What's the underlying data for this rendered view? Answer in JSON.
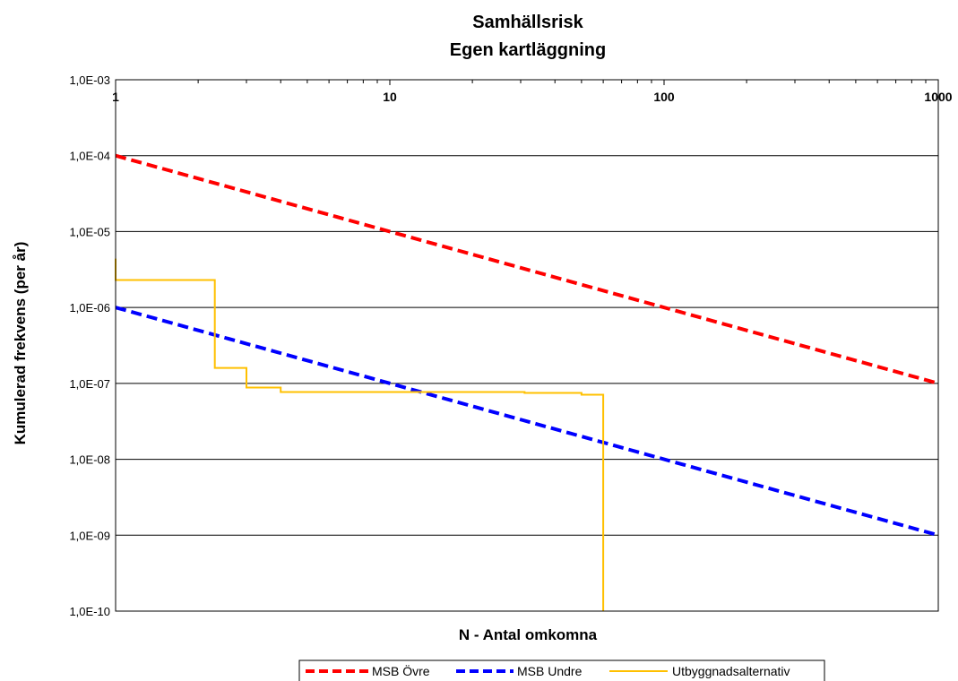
{
  "chart_data": {
    "type": "line",
    "title": [
      "Samhällsrisk",
      "Egen kartläggning"
    ],
    "xlabel": "N - Antal omkomna",
    "ylabel": "Kumulerad frekvens (per år)",
    "x_scale": "log",
    "y_scale": "log",
    "xlim": [
      1,
      1000
    ],
    "ylim": [
      1e-10,
      0.001
    ],
    "x_ticks": [
      1,
      10,
      100,
      1000
    ],
    "x_tick_labels": [
      "1",
      "10",
      "100",
      "1000"
    ],
    "y_ticks": [
      0.001,
      0.0001,
      1e-05,
      1e-06,
      1e-07,
      1e-08,
      1e-09,
      1e-10
    ],
    "y_tick_labels": [
      "1,0E-03",
      "1,0E-04",
      "1,0E-05",
      "1,0E-06",
      "1,0E-07",
      "1,0E-08",
      "1,0E-09",
      "1,0E-10"
    ],
    "grid": "horizontal major",
    "legend_position": "bottom",
    "series": [
      {
        "name": "MSB Övre",
        "color": "#ff0000",
        "style": "dashed",
        "x": [
          1,
          1000
        ],
        "y": [
          0.0001,
          1e-07
        ]
      },
      {
        "name": "MSB Undre",
        "color": "#0000ff",
        "style": "dashed",
        "x": [
          1,
          1000
        ],
        "y": [
          1e-06,
          1e-09
        ]
      },
      {
        "name": "Utbyggnadsalternativ",
        "color": "#ffc000",
        "style": "solid",
        "x": [
          1,
          1,
          2.3,
          2.3,
          3.0,
          3.0,
          4.0,
          4.0,
          31,
          31,
          50,
          50,
          60,
          60
        ],
        "y": [
          4.4e-06,
          2.3e-06,
          2.3e-06,
          1.6e-07,
          1.6e-07,
          8.8e-08,
          8.8e-08,
          7.7e-08,
          7.7e-08,
          7.5e-08,
          7.5e-08,
          7.1e-08,
          7.1e-08,
          1e-10
        ]
      }
    ]
  }
}
